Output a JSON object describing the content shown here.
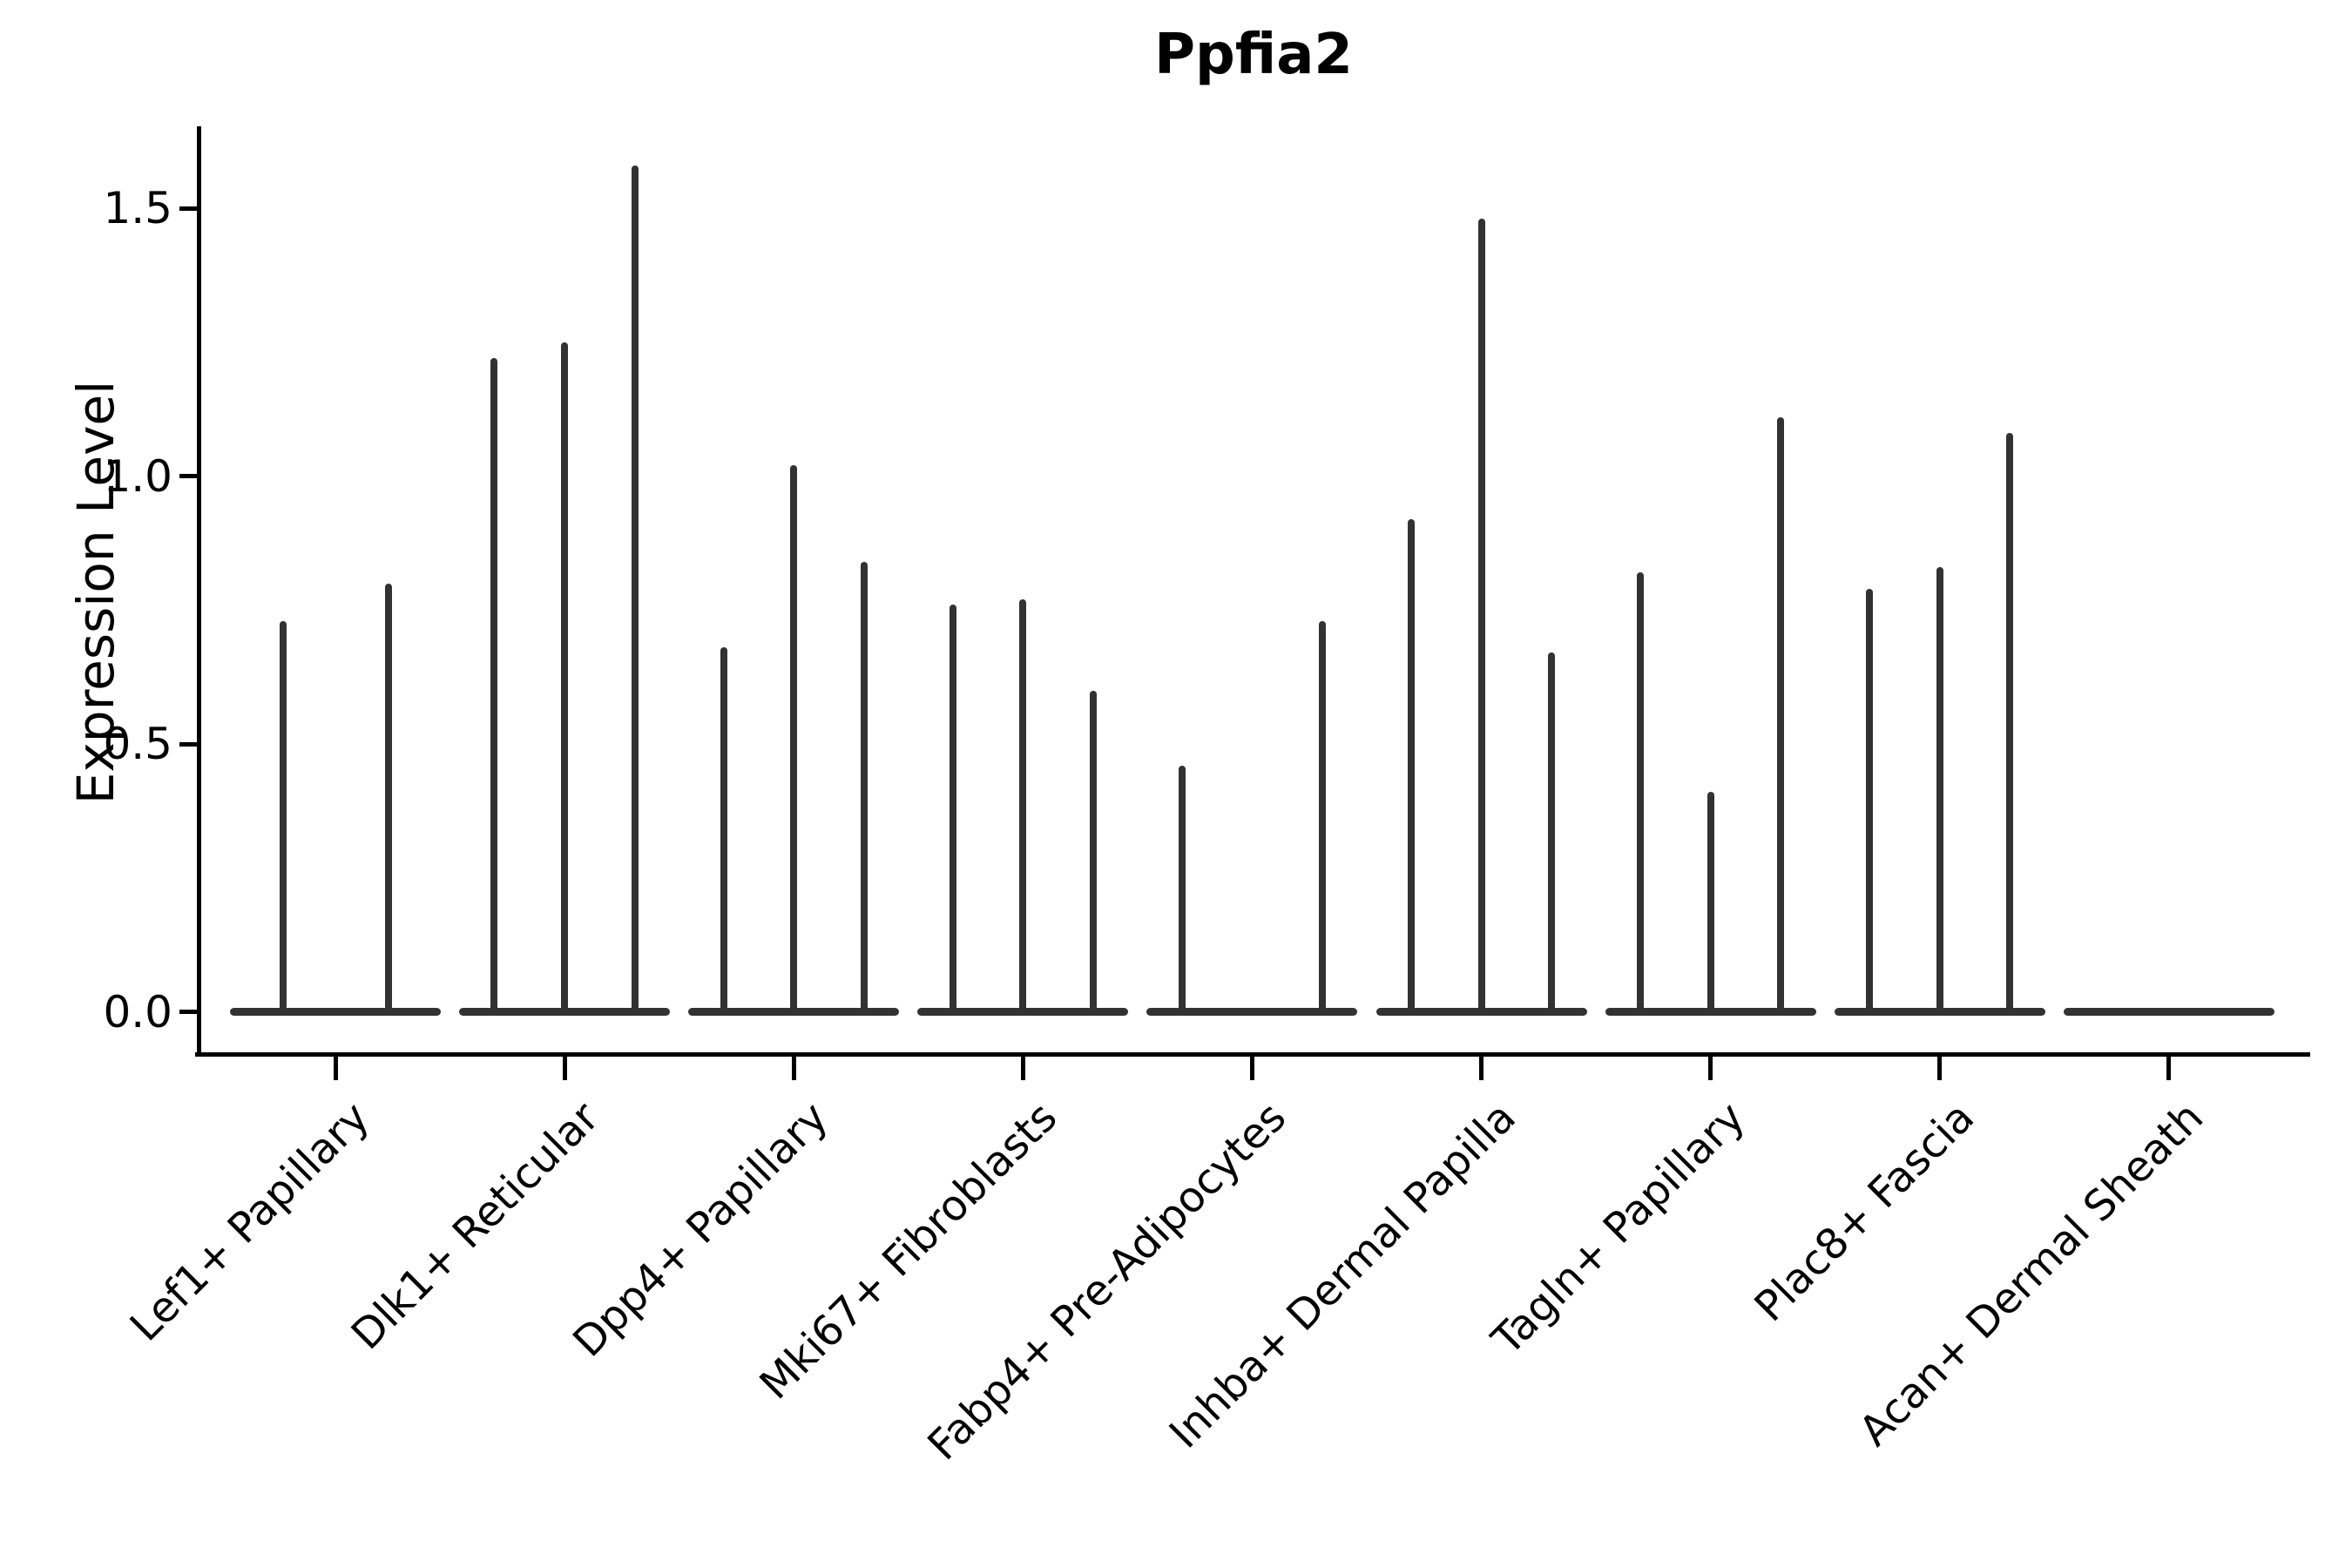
{
  "chart_data": {
    "type": "violin",
    "title": "Ppfia2",
    "xlabel": "",
    "ylabel": "Expression Level",
    "categories": [
      "Lef1+ Papillary",
      "Dlk1+ Reticular",
      "Dpp4+ Papillary",
      "Mki67+ Fibroblasts",
      "Fabp4+ Pre-Adipocytes",
      "Inhba+ Dermal Papilla",
      "Tagln+ Papillary",
      "Plac8+ Fascia",
      "Acan+ Dermal Sheath"
    ],
    "violin_max_values": [
      [
        0.73,
        0.8
      ],
      [
        1.22,
        1.25,
        1.58
      ],
      [
        0.68,
        1.02,
        0.84
      ],
      [
        0.76,
        0.77,
        0.6
      ],
      [
        0.46,
        0.0,
        0.73
      ],
      [
        0.92,
        1.48,
        0.67
      ],
      [
        0.82,
        0.41,
        1.11
      ],
      [
        0.79,
        0.83,
        1.08
      ],
      [
        0.0,
        0.0,
        0.0
      ]
    ],
    "violin_min_value": 0.0,
    "yticks": [
      0.0,
      0.5,
      1.0,
      1.5
    ],
    "ylim": [
      -0.08,
      1.65
    ],
    "grid": false,
    "legend": false,
    "violin_color": "#323232",
    "axis_color": "#000000",
    "x_tick_label_rotation_deg": 45
  }
}
